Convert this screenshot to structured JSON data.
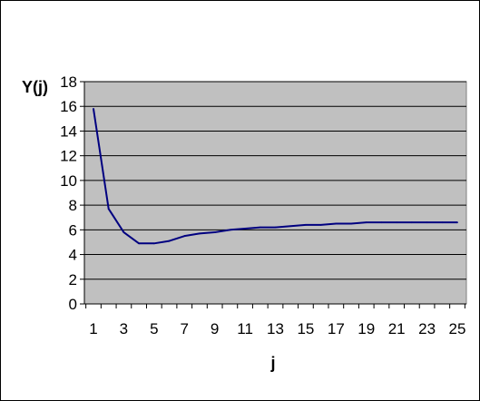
{
  "chart_data": {
    "type": "line",
    "title": "",
    "xlabel": "j",
    "ylabel": "Y(j)",
    "x": [
      1,
      2,
      3,
      4,
      5,
      6,
      7,
      8,
      9,
      10,
      11,
      12,
      13,
      14,
      15,
      16,
      17,
      18,
      19,
      20,
      21,
      22,
      23,
      24,
      25
    ],
    "xlim": [
      1,
      25
    ],
    "x_tick_labels": [
      "1",
      "3",
      "5",
      "7",
      "9",
      "11",
      "13",
      "15",
      "17",
      "19",
      "21",
      "23",
      "25"
    ],
    "ylim": [
      0,
      18
    ],
    "y_tick_labels": [
      "0",
      "2",
      "4",
      "6",
      "8",
      "10",
      "12",
      "14",
      "16",
      "18"
    ],
    "grid": true,
    "legend": "none",
    "series": [
      {
        "values": [
          15.8,
          7.7,
          5.8,
          4.9,
          4.9,
          5.1,
          5.5,
          5.7,
          5.8,
          6.0,
          6.1,
          6.2,
          6.2,
          6.3,
          6.4,
          6.4,
          6.5,
          6.5,
          6.6,
          6.6,
          6.6,
          6.6,
          6.6,
          6.6,
          6.6
        ],
        "color": "#000080"
      }
    ],
    "plot_background": "#c0c0c0",
    "grid_color": "#000000"
  }
}
